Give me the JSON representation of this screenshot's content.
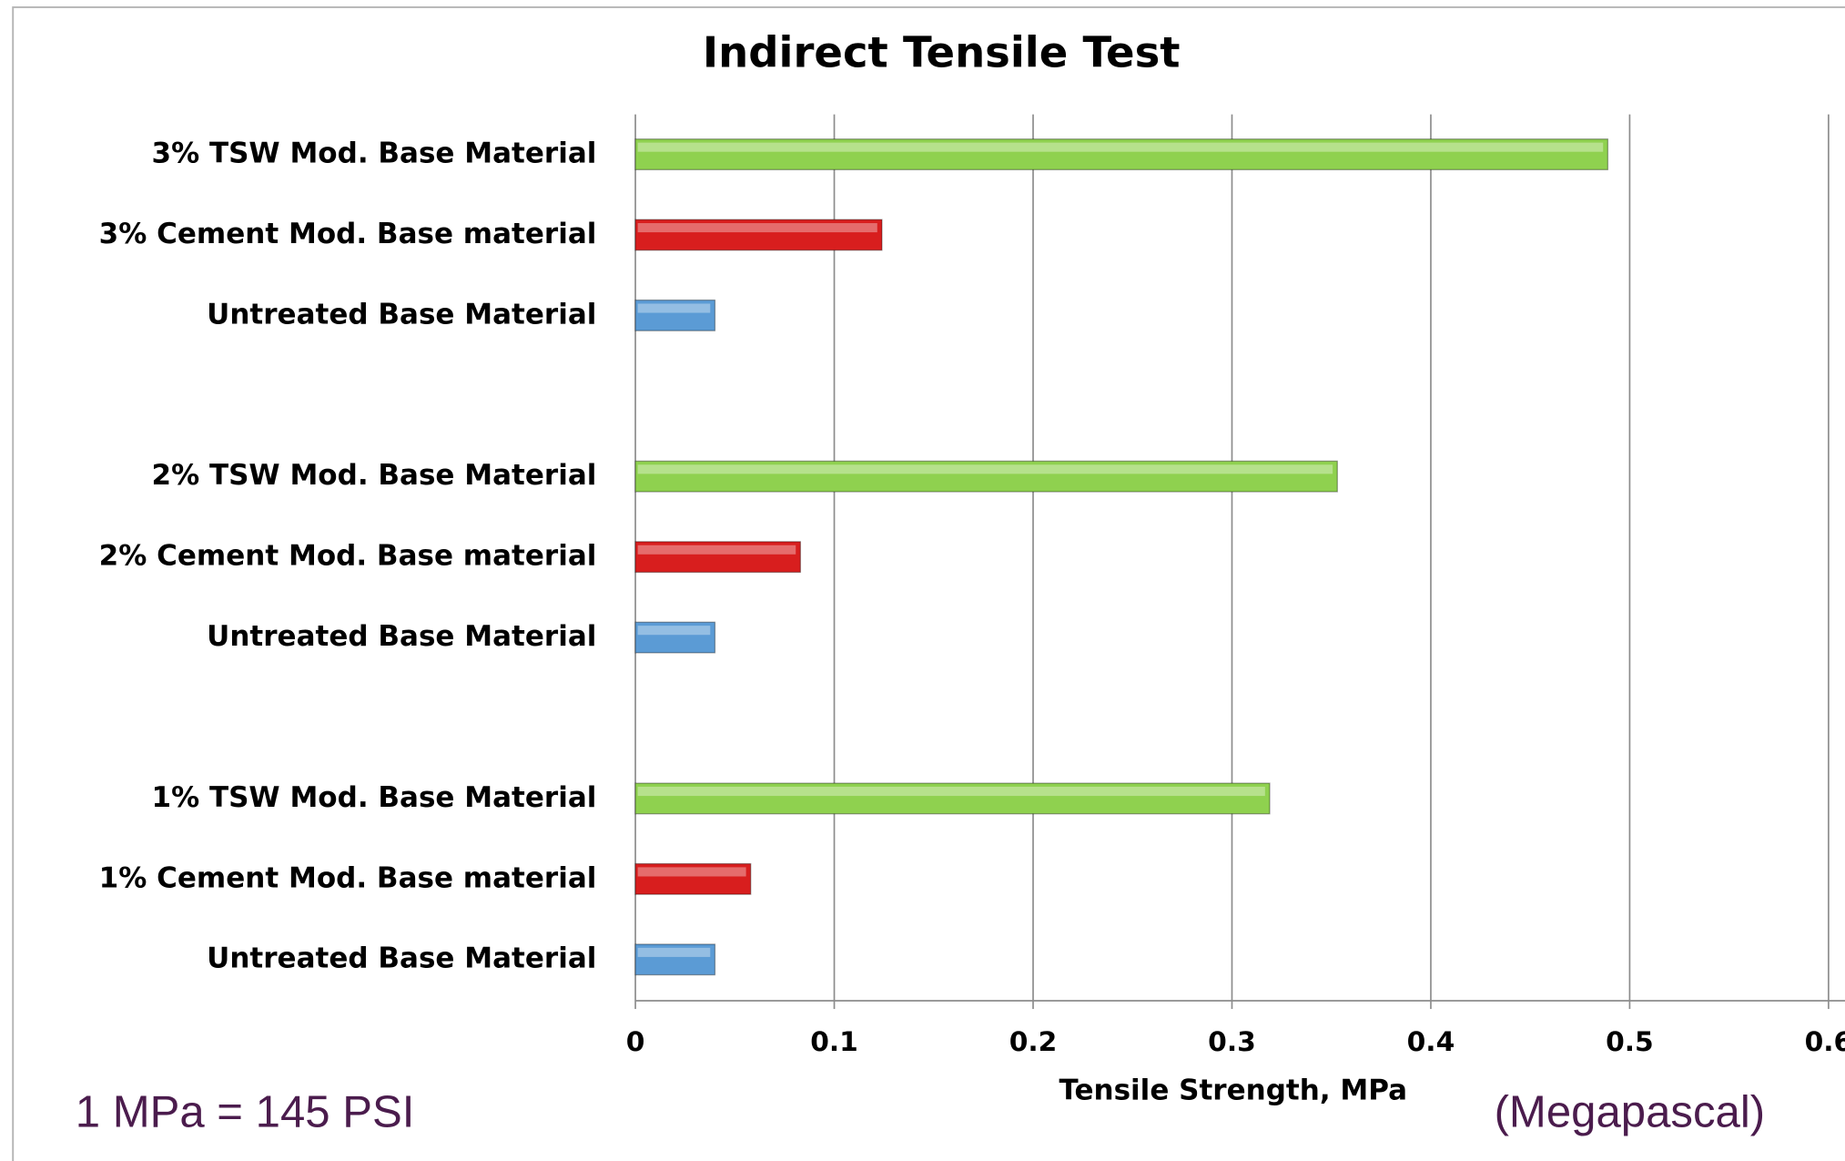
{
  "chart_data": {
    "type": "bar",
    "orientation": "horizontal",
    "title": "Indirect Tensile Test",
    "x_label": "Tensile Strength, MPa",
    "annotations": [
      "1 MPa =  145 PSI",
      "(Megapascal)"
    ],
    "categories": [
      "3% TSW Mod. Base Material",
      "3% Cement Mod. Base material",
      "Untreated Base Material",
      null,
      "2% TSW Mod. Base Material",
      "2% Cement Mod. Base material",
      "Untreated Base Material",
      null,
      "1% TSW Mod. Base Material",
      "1% Cement Mod. Base material",
      "Untreated Base Material"
    ],
    "values": [
      0.489,
      0.124,
      0.04,
      null,
      0.353,
      0.083,
      0.04,
      null,
      0.319,
      0.058,
      0.04
    ],
    "colors": [
      "#8fd14f",
      "#d81e1e",
      "#5b9bd5",
      null,
      "#8fd14f",
      "#d81e1e",
      "#5b9bd5",
      null,
      "#8fd14f",
      "#d81e1e",
      "#5b9bd5"
    ],
    "xlim": [
      0,
      0.6
    ],
    "xticks": [
      0,
      0.1,
      0.2,
      0.3,
      0.4,
      0.5,
      0.6
    ],
    "grid": true
  }
}
